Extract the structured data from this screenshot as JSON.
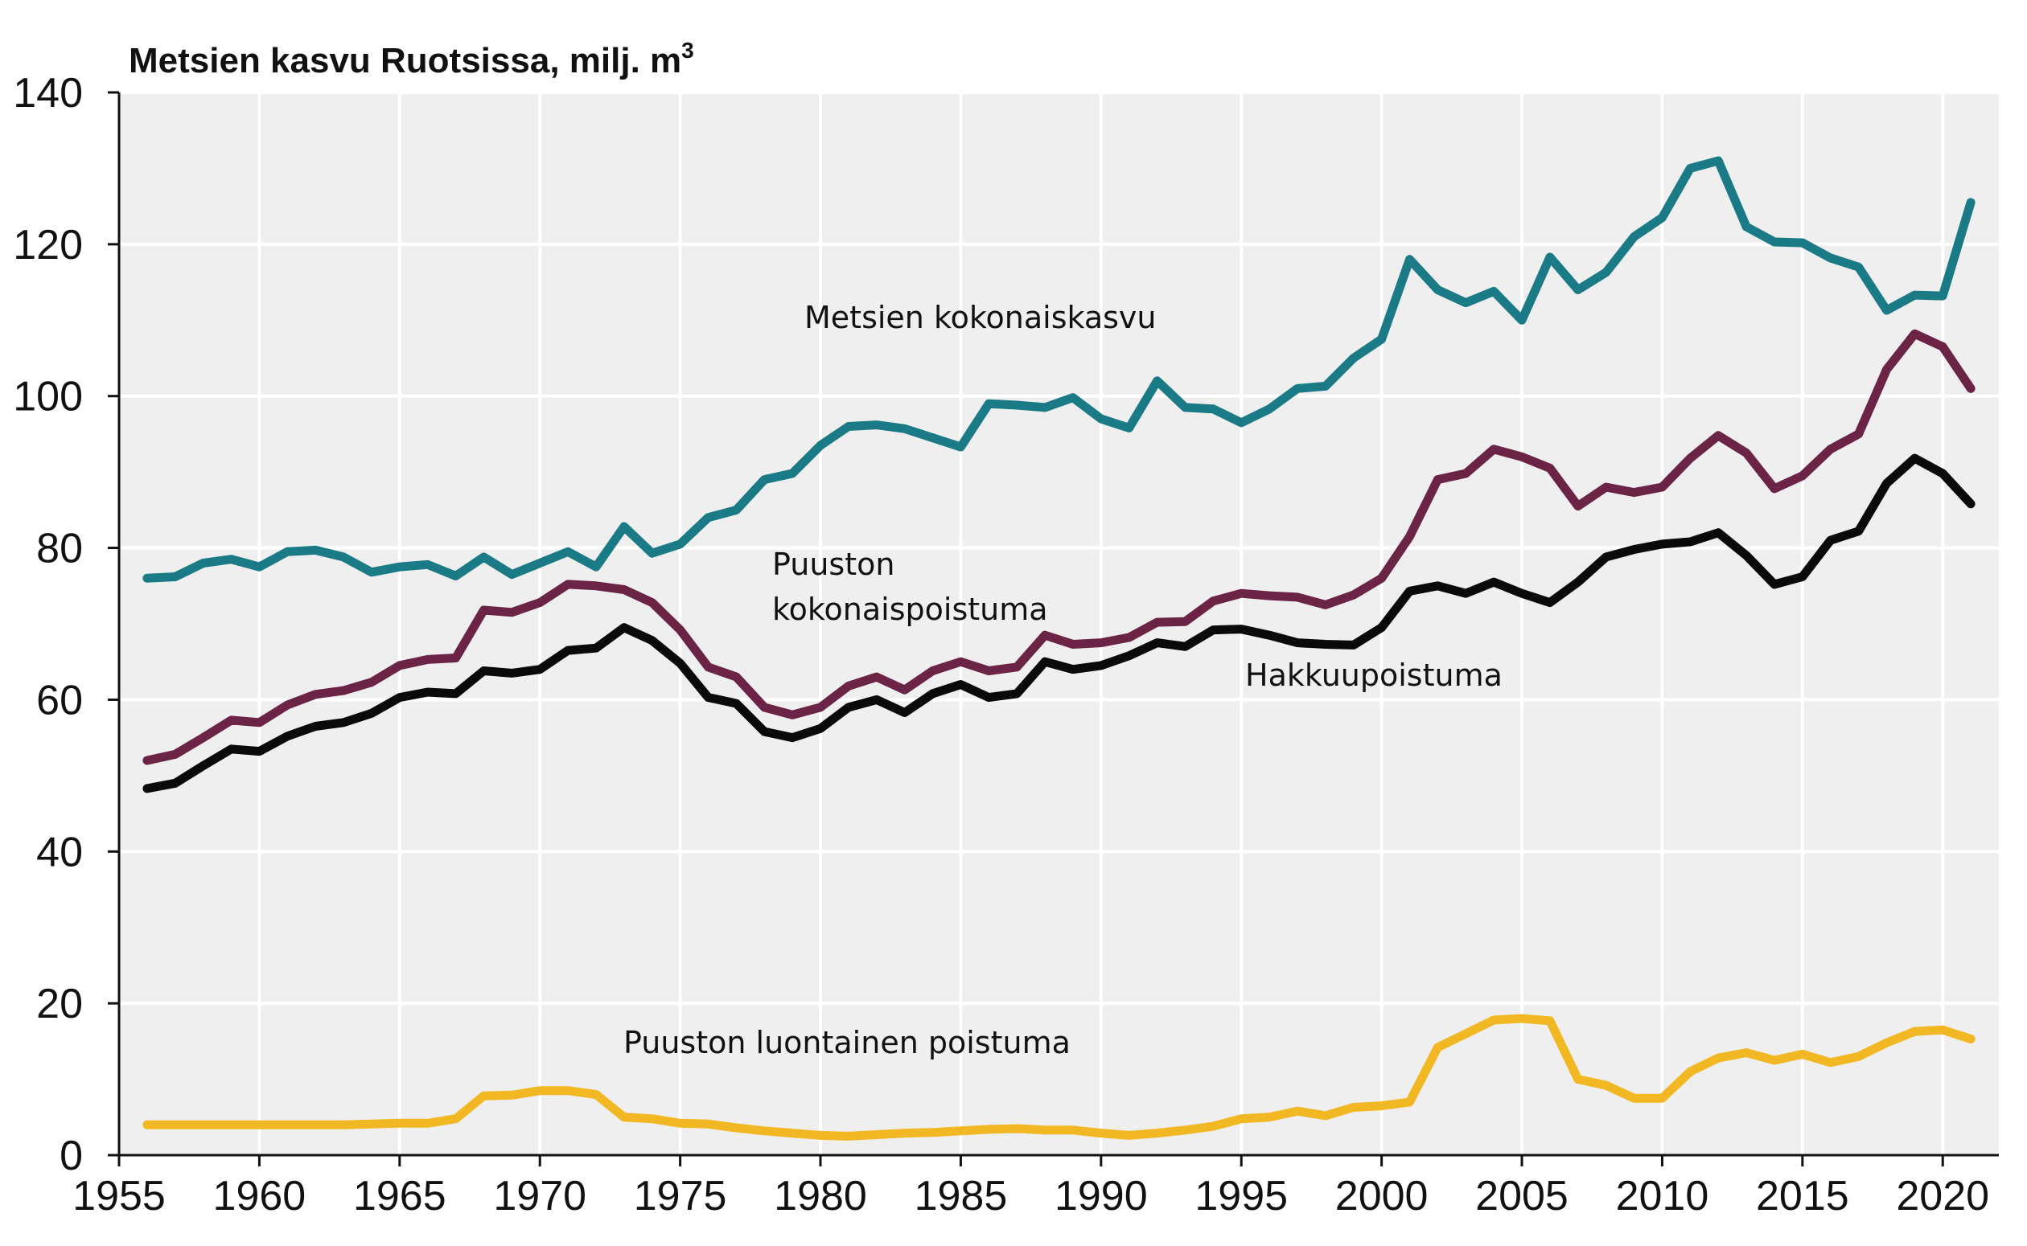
{
  "chart_data": {
    "type": "line",
    "title": "Metsien kasvu Ruotsissa, milj. m",
    "title_superscript": "3",
    "xlabel": "",
    "ylabel": "",
    "xlim": [
      1955,
      2022
    ],
    "ylim": [
      0,
      140
    ],
    "x_ticks": [
      1955,
      1960,
      1965,
      1970,
      1975,
      1980,
      1985,
      1990,
      1995,
      2000,
      2005,
      2010,
      2015,
      2020
    ],
    "y_ticks": [
      0,
      20,
      40,
      60,
      80,
      100,
      120,
      140
    ],
    "grid": true,
    "background": "#efefef",
    "x": [
      1956,
      1957,
      1958,
      1959,
      1960,
      1961,
      1962,
      1963,
      1964,
      1965,
      1966,
      1967,
      1968,
      1969,
      1970,
      1971,
      1972,
      1973,
      1974,
      1975,
      1976,
      1977,
      1978,
      1979,
      1980,
      1981,
      1982,
      1983,
      1984,
      1985,
      1986,
      1987,
      1988,
      1989,
      1990,
      1991,
      1992,
      1993,
      1994,
      1995,
      1996,
      1997,
      1998,
      1999,
      2000,
      2001,
      2002,
      2003,
      2004,
      2005,
      2006,
      2007,
      2008,
      2009,
      2010,
      2011,
      2012,
      2013,
      2014,
      2015,
      2016,
      2017,
      2018,
      2019,
      2020,
      2021
    ],
    "series": [
      {
        "name": "Metsien kokonaiskasvu",
        "color": "#1a7a86",
        "label_pos": [
          1999,
          107.5
        ],
        "label_lines": [
          "Metsien kokonaiskasvu"
        ],
        "values": [
          76,
          76.2,
          78,
          78.5,
          77.5,
          79.5,
          79.7,
          78.8,
          76.8,
          77.5,
          77.8,
          76.3,
          78.8,
          76.5,
          78,
          79.5,
          77.5,
          82.8,
          79.3,
          80.5,
          84,
          85,
          89,
          89.8,
          93.5,
          96,
          96.2,
          95.7,
          94.5,
          93.3,
          99,
          98.8,
          98.5,
          99.8,
          97,
          95.8,
          102,
          98.5,
          98.3,
          96.5,
          98.3,
          101,
          101.3,
          105,
          107.5,
          118,
          114,
          112.3,
          113.8,
          110,
          118.3,
          114,
          116.3,
          121,
          123.5,
          130,
          131,
          122.3,
          120.3,
          120.2,
          118.2,
          117,
          111.3,
          113.3,
          113.2,
          125.5
        ]
      },
      {
        "name": "Puuston kokonaispoistuma",
        "color": "#6b2445",
        "label_lines": [
          "Puuston",
          "kokonaispoistuma"
        ],
        "values": [
          52,
          52.8,
          55,
          57.3,
          57,
          59.3,
          60.7,
          61.2,
          62.3,
          64.5,
          65.3,
          65.5,
          71.8,
          71.5,
          72.8,
          75.2,
          75,
          74.5,
          72.8,
          69.2,
          64.3,
          63,
          59,
          58,
          59,
          61.8,
          63,
          61.3,
          63.8,
          65,
          63.8,
          64.3,
          68.5,
          67.3,
          67.5,
          68.2,
          70.2,
          70.3,
          73,
          74,
          73.7,
          73.5,
          72.5,
          73.8,
          76,
          81.5,
          89,
          89.8,
          93,
          92,
          90.5,
          85.5,
          88,
          87.3,
          88,
          91.8,
          94.8,
          92.5,
          87.8,
          89.5,
          93,
          95,
          103.5,
          108.2,
          106.5,
          101
        ]
      },
      {
        "name": "Hakkuupoistuma",
        "color": "#0a0a0a",
        "label_lines": [
          "Hakkuupoistuma"
        ],
        "values": [
          48.3,
          49,
          51.3,
          53.5,
          53.2,
          55.2,
          56.5,
          57,
          58.2,
          60.3,
          61,
          60.8,
          63.8,
          63.5,
          64,
          66.5,
          66.8,
          69.5,
          67.8,
          64.8,
          60.3,
          59.5,
          55.8,
          55,
          56.2,
          59,
          60,
          58.3,
          60.8,
          62,
          60.3,
          60.8,
          65,
          64,
          64.5,
          65.8,
          67.5,
          67,
          69.2,
          69.3,
          68.5,
          67.5,
          67.3,
          67.2,
          69.5,
          74.3,
          75,
          74,
          75.5,
          74,
          72.8,
          75.5,
          78.8,
          79.8,
          80.5,
          80.8,
          82,
          79,
          75.2,
          76.2,
          81,
          82.2,
          88.5,
          91.8,
          89.8,
          85.8
        ]
      },
      {
        "name": "Puuston luontainen poistuma",
        "color": "#f2b823",
        "label_lines": [
          "Puuston luontainen poistuma"
        ],
        "values": [
          4,
          4,
          4,
          4,
          4,
          4,
          4,
          4,
          4.1,
          4.2,
          4.2,
          4.8,
          7.8,
          7.9,
          8.5,
          8.5,
          8,
          5,
          4.8,
          4.2,
          4.1,
          3.6,
          3.2,
          2.9,
          2.6,
          2.5,
          2.7,
          2.9,
          3,
          3.2,
          3.4,
          3.5,
          3.3,
          3.3,
          2.9,
          2.6,
          2.9,
          3.3,
          3.8,
          4.8,
          5,
          5.8,
          5.2,
          6.3,
          6.5,
          7,
          14.2,
          16,
          17.8,
          18,
          17.7,
          10,
          9.2,
          7.5,
          7.5,
          11,
          12.8,
          13.5,
          12.5,
          13.3,
          12.2,
          13,
          14.8,
          16.3,
          16.5,
          15.3
        ]
      }
    ]
  }
}
